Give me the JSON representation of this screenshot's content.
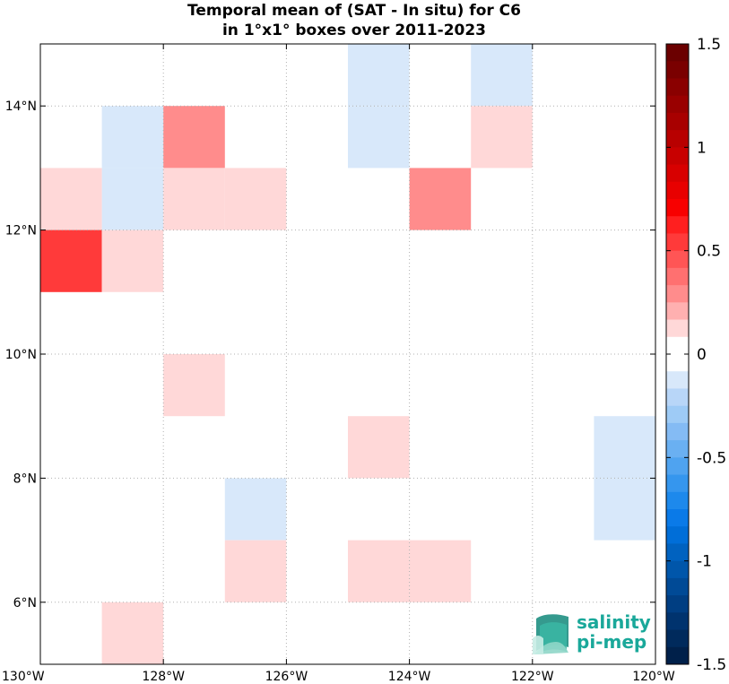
{
  "title_line1": "Temporal mean of (SAT - In situ) for C6",
  "title_line2": "in 1°x1° boxes over 2011-2023",
  "chart_data": {
    "type": "heatmap",
    "x_ticks": [
      {
        "value": -130,
        "label": "130°W"
      },
      {
        "value": -128,
        "label": "128°W"
      },
      {
        "value": -126,
        "label": "126°W"
      },
      {
        "value": -124,
        "label": "124°W"
      },
      {
        "value": -122,
        "label": "122°W"
      },
      {
        "value": -120,
        "label": "120°W"
      }
    ],
    "y_ticks": [
      {
        "value": 6,
        "label": "6°N"
      },
      {
        "value": 8,
        "label": "8°N"
      },
      {
        "value": 10,
        "label": "10°N"
      },
      {
        "value": 12,
        "label": "12°N"
      },
      {
        "value": 14,
        "label": "14°N"
      }
    ],
    "xlim": [
      -130,
      -120
    ],
    "ylim": [
      5,
      15
    ],
    "grid": true,
    "cells": [
      {
        "lon": -125,
        "lat": 14,
        "value": -0.1
      },
      {
        "lon": -125,
        "lat": 13,
        "value": -0.1
      },
      {
        "lon": -123,
        "lat": 14,
        "value": -0.1
      },
      {
        "lon": -129,
        "lat": 13,
        "value": -0.1
      },
      {
        "lon": -129,
        "lat": 12,
        "value": -0.1
      },
      {
        "lon": -128,
        "lat": 13,
        "value": 0.3
      },
      {
        "lon": -123,
        "lat": 13,
        "value": 0.15
      },
      {
        "lon": -130,
        "lat": 12,
        "value": 0.15
      },
      {
        "lon": -128,
        "lat": 12,
        "value": 0.15
      },
      {
        "lon": -127,
        "lat": 12,
        "value": 0.15
      },
      {
        "lon": -124,
        "lat": 12,
        "value": 0.3
      },
      {
        "lon": -130,
        "lat": 11,
        "value": 0.55
      },
      {
        "lon": -129,
        "lat": 11,
        "value": 0.15
      },
      {
        "lon": -128,
        "lat": 9,
        "value": 0.15
      },
      {
        "lon": -125,
        "lat": 8,
        "value": 0.15
      },
      {
        "lon": -121,
        "lat": 8,
        "value": -0.1
      },
      {
        "lon": -121,
        "lat": 7,
        "value": -0.1
      },
      {
        "lon": -127,
        "lat": 7,
        "value": -0.1
      },
      {
        "lon": -127,
        "lat": 6,
        "value": 0.15
      },
      {
        "lon": -125,
        "lat": 6,
        "value": 0.15
      },
      {
        "lon": -124,
        "lat": 6,
        "value": 0.15
      },
      {
        "lon": -129,
        "lat": 5,
        "value": 0.15
      }
    ],
    "colorbar": {
      "range": [
        -1.5,
        1.5
      ],
      "ticks": [
        {
          "value": 1.5,
          "label": "1.5"
        },
        {
          "value": 1,
          "label": "1"
        },
        {
          "value": 0.5,
          "label": "0.5"
        },
        {
          "value": 0,
          "label": "0"
        },
        {
          "value": -0.5,
          "label": "-0.5"
        },
        {
          "value": -1,
          "label": "-1"
        },
        {
          "value": -1.5,
          "label": "-1.5"
        }
      ],
      "colors_top_to_bottom": [
        "#6b0000",
        "#7a0000",
        "#8a0000",
        "#990000",
        "#a80000",
        "#b80000",
        "#c80000",
        "#d80000",
        "#e80000",
        "#f80000",
        "#ff1f1f",
        "#ff3a3a",
        "#ff5555",
        "#ff7070",
        "#ff8c8c",
        "#ffb0b0",
        "#ffd8d8",
        "#ffffff",
        "#ffffff",
        "#d8e8fa",
        "#b8d6f8",
        "#9ecbf6",
        "#84bbf4",
        "#6ab0f2",
        "#4fa3f0",
        "#3596ee",
        "#1d89ec",
        "#0a7ae8",
        "#006ed8",
        "#0062c0",
        "#0056aa",
        "#004a96",
        "#003e82",
        "#00336e",
        "#002a5c",
        "#00204a"
      ]
    }
  },
  "logo": {
    "line1": "salinity",
    "line2": "pi-mep",
    "text_color": "#1aa89a",
    "icon_color": "#2bb39e"
  }
}
